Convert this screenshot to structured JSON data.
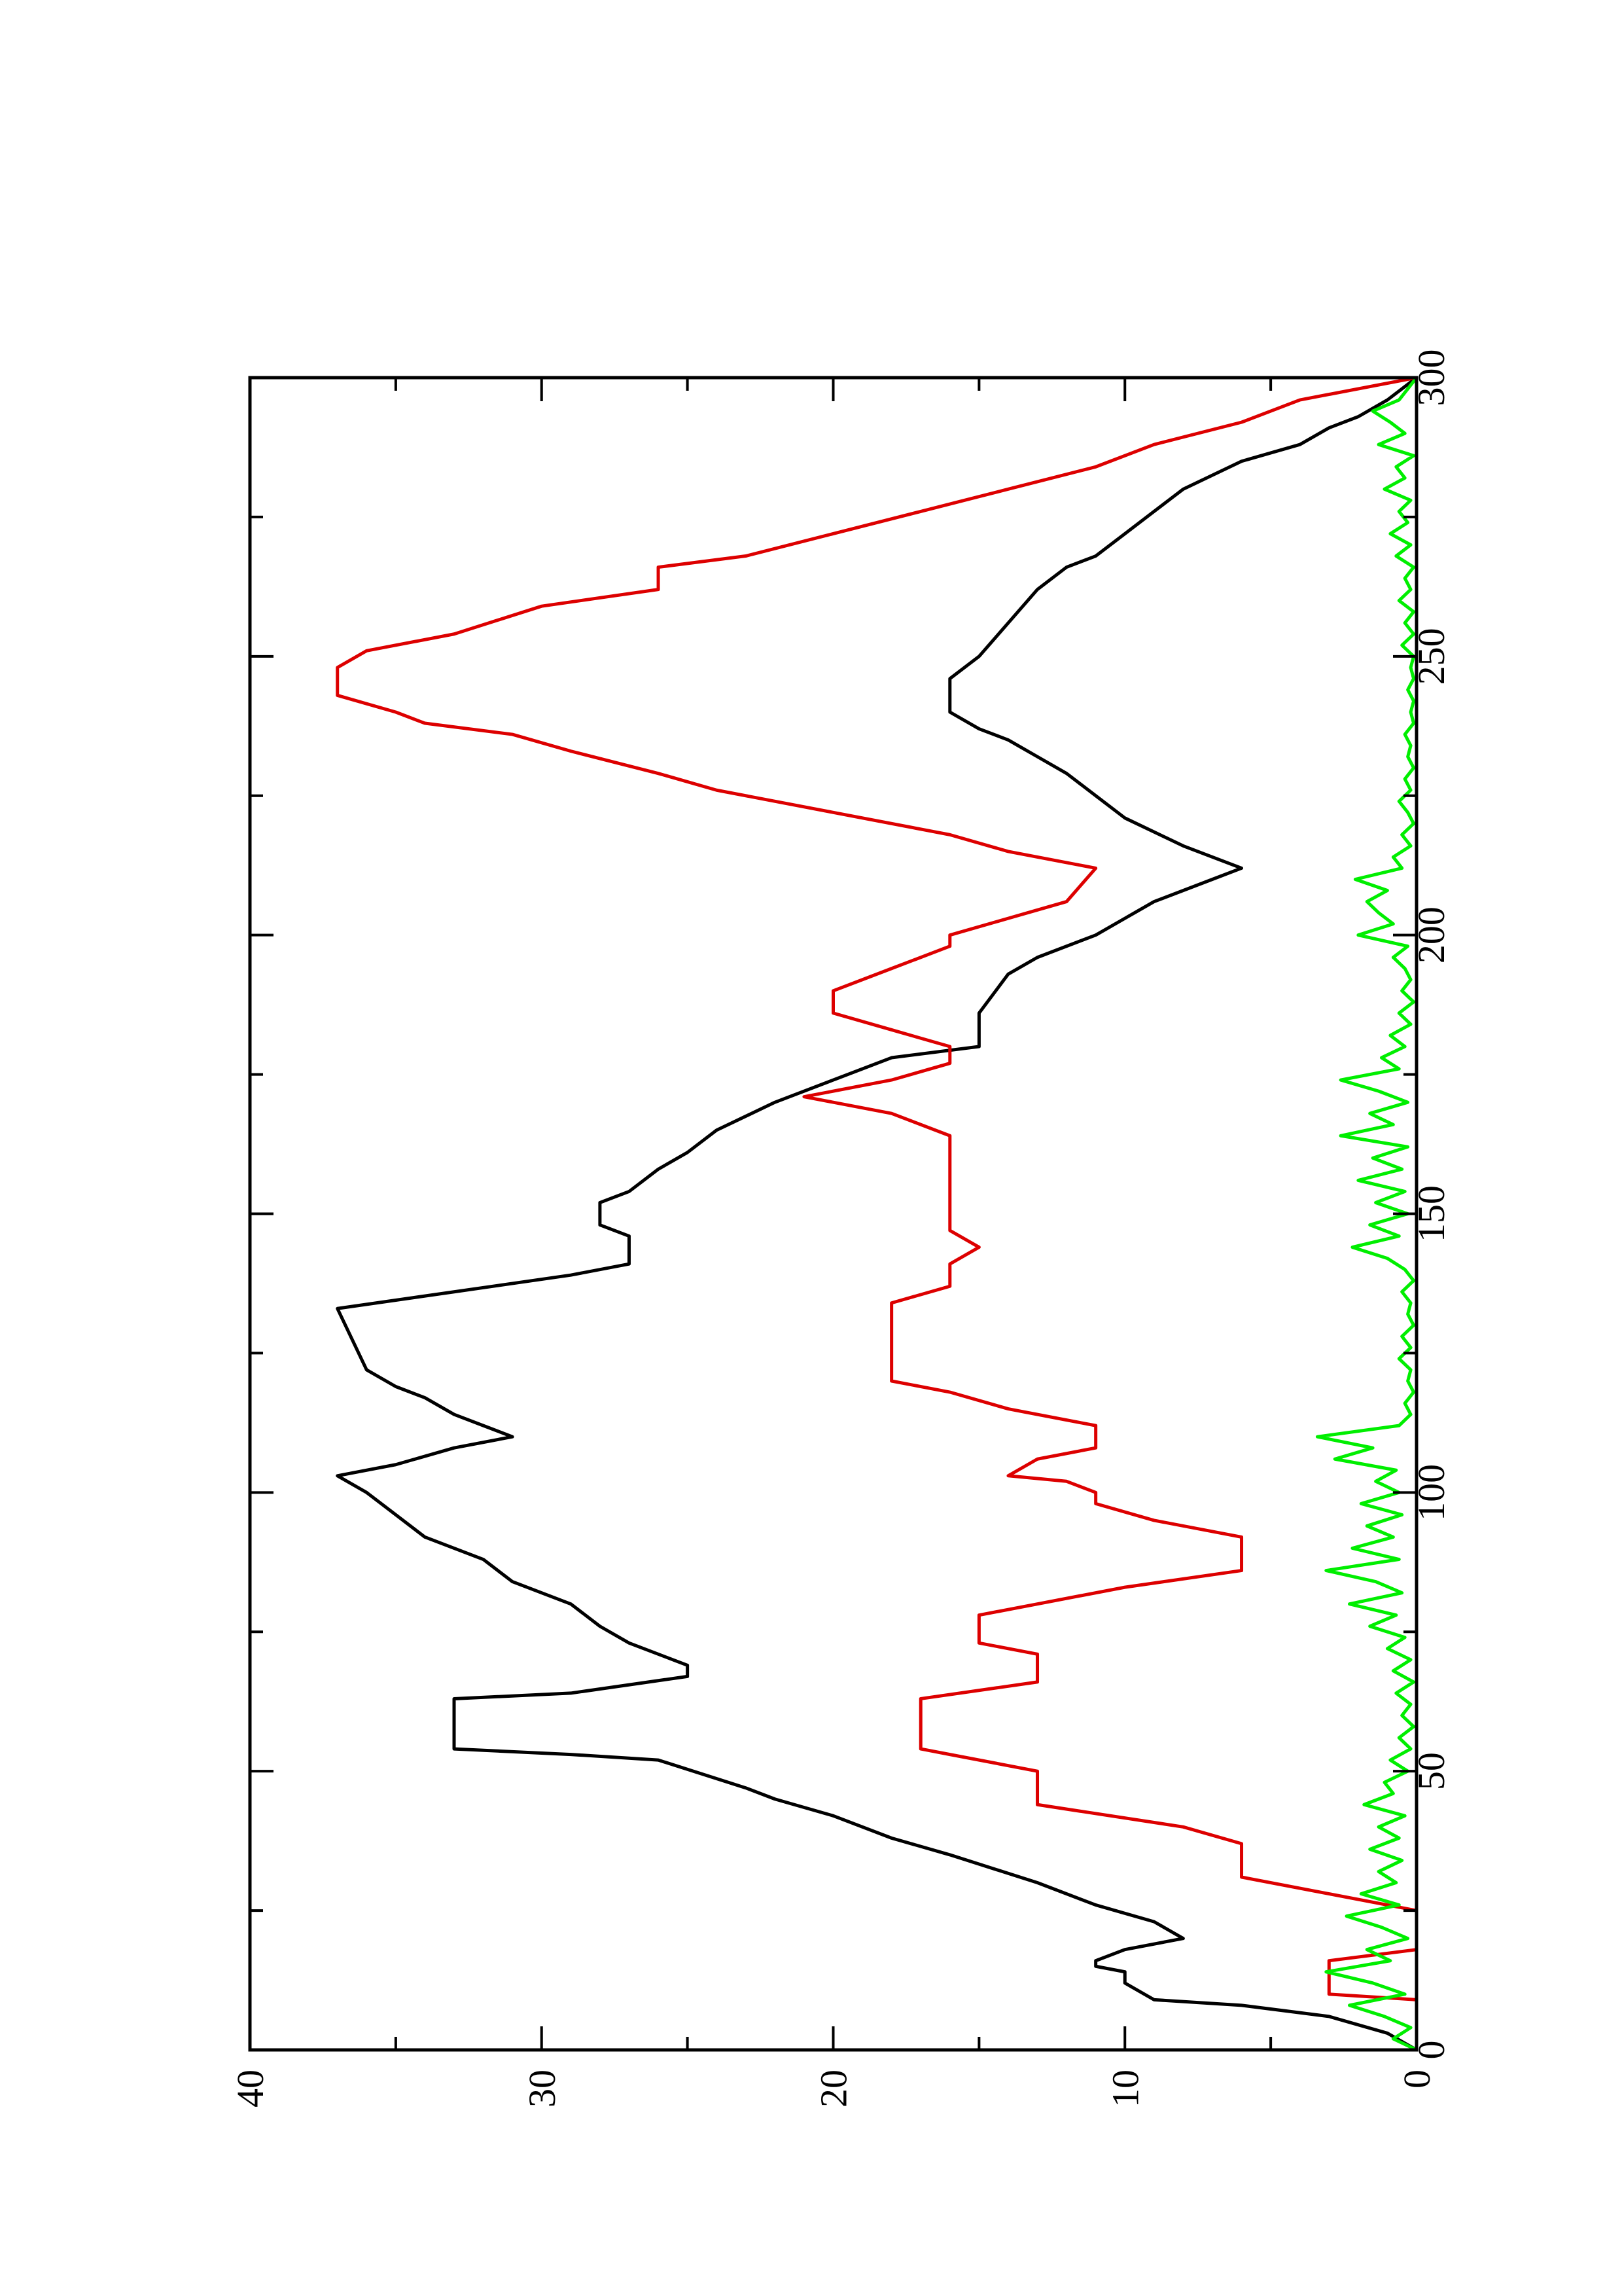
{
  "chart_data": {
    "type": "line",
    "orientation": "rotated 90 degrees counter-clockwise",
    "title": "",
    "xlabel": "",
    "ylabel": "",
    "xlim": [
      0,
      300
    ],
    "ylim": [
      0,
      40
    ],
    "x_ticks": [
      "0",
      "50",
      "100",
      "150",
      "200",
      "250",
      "300"
    ],
    "y_ticks": [
      "0",
      "10",
      "20",
      "30",
      "40"
    ],
    "grid": false,
    "legend": "none",
    "colors": {
      "series_black": "#000000",
      "series_red": "#dd0000",
      "series_green": "#00ee00",
      "frame": "#000000"
    },
    "series": [
      {
        "color": "#000000",
        "points": [
          [
            0,
            0
          ],
          [
            3,
            1
          ],
          [
            6,
            3
          ],
          [
            8,
            6
          ],
          [
            9,
            9
          ],
          [
            12,
            10
          ],
          [
            14,
            10
          ],
          [
            15,
            11
          ],
          [
            16,
            11
          ],
          [
            18,
            10
          ],
          [
            20,
            8
          ],
          [
            23,
            9
          ],
          [
            26,
            11
          ],
          [
            30,
            13
          ],
          [
            35,
            16
          ],
          [
            38,
            18
          ],
          [
            42,
            20
          ],
          [
            45,
            22
          ],
          [
            47,
            23
          ],
          [
            52,
            26
          ],
          [
            53,
            29
          ],
          [
            54,
            33
          ],
          [
            63,
            33
          ],
          [
            64,
            29
          ],
          [
            67,
            25
          ],
          [
            69,
            25
          ],
          [
            73,
            27
          ],
          [
            76,
            28
          ],
          [
            80,
            29
          ],
          [
            84,
            31
          ],
          [
            88,
            32
          ],
          [
            92,
            34
          ],
          [
            96,
            35
          ],
          [
            100,
            36
          ],
          [
            103,
            37
          ],
          [
            105,
            35
          ],
          [
            108,
            33
          ],
          [
            110,
            31
          ],
          [
            112,
            32
          ],
          [
            114,
            33
          ],
          [
            117,
            34
          ],
          [
            119,
            35
          ],
          [
            122,
            36
          ],
          [
            133,
            37
          ],
          [
            136,
            33
          ],
          [
            139,
            29
          ],
          [
            141,
            27
          ],
          [
            143,
            27
          ],
          [
            146,
            27
          ],
          [
            148,
            28
          ],
          [
            152,
            28
          ],
          [
            154,
            27
          ],
          [
            158,
            26
          ],
          [
            161,
            25
          ],
          [
            165,
            24
          ],
          [
            170,
            22
          ],
          [
            174,
            20
          ],
          [
            178,
            18
          ],
          [
            180,
            15
          ],
          [
            184,
            15
          ],
          [
            186,
            15
          ],
          [
            193,
            14
          ],
          [
            196,
            13
          ],
          [
            200,
            11
          ],
          [
            203,
            10
          ],
          [
            206,
            9
          ],
          [
            210,
            7
          ],
          [
            212,
            6
          ],
          [
            216,
            8
          ],
          [
            221,
            10
          ],
          [
            225,
            11
          ],
          [
            229,
            12
          ],
          [
            232,
            13
          ],
          [
            235,
            14
          ],
          [
            237,
            15
          ],
          [
            240,
            16
          ],
          [
            246,
            16
          ],
          [
            250,
            15
          ],
          [
            256,
            14
          ],
          [
            262,
            13
          ],
          [
            266,
            12
          ],
          [
            268,
            11
          ],
          [
            272,
            10
          ],
          [
            276,
            9
          ],
          [
            280,
            8
          ],
          [
            285,
            6
          ],
          [
            288,
            4
          ],
          [
            291,
            3
          ],
          [
            293,
            2
          ],
          [
            296,
            1
          ],
          [
            300,
            0
          ]
        ]
      },
      {
        "color": "#dd0000",
        "points": [
          [
            0,
            0
          ],
          [
            7,
            0
          ],
          [
            9,
            0
          ],
          [
            10,
            3
          ],
          [
            15,
            3
          ],
          [
            16,
            3
          ],
          [
            18,
            0
          ],
          [
            20,
            0
          ],
          [
            25,
            0
          ],
          [
            28,
            3
          ],
          [
            31,
            6
          ],
          [
            37,
            6
          ],
          [
            40,
            8
          ],
          [
            44,
            13
          ],
          [
            48,
            13
          ],
          [
            50,
            13
          ],
          [
            53,
            16
          ],
          [
            54,
            17
          ],
          [
            63,
            17
          ],
          [
            66,
            13
          ],
          [
            69,
            13
          ],
          [
            71,
            13
          ],
          [
            73,
            15
          ],
          [
            76,
            15
          ],
          [
            78,
            15
          ],
          [
            80,
            13
          ],
          [
            83,
            10
          ],
          [
            86,
            6
          ],
          [
            92,
            6
          ],
          [
            95,
            9
          ],
          [
            98,
            11
          ],
          [
            100,
            11
          ],
          [
            102,
            12
          ],
          [
            103,
            14
          ],
          [
            106,
            13
          ],
          [
            108,
            11
          ],
          [
            112,
            11
          ],
          [
            115,
            14
          ],
          [
            118,
            16
          ],
          [
            120,
            18
          ],
          [
            128,
            18
          ],
          [
            134,
            18
          ],
          [
            137,
            16
          ],
          [
            141,
            16
          ],
          [
            144,
            15
          ],
          [
            147,
            16
          ],
          [
            152,
            16
          ],
          [
            160,
            16
          ],
          [
            164,
            16
          ],
          [
            168,
            18
          ],
          [
            171,
            21
          ],
          [
            174,
            18
          ],
          [
            177,
            16
          ],
          [
            180,
            16
          ],
          [
            183,
            18
          ],
          [
            186,
            20
          ],
          [
            190,
            20
          ],
          [
            194,
            18
          ],
          [
            198,
            16
          ],
          [
            200,
            16
          ],
          [
            203,
            14
          ],
          [
            206,
            12
          ],
          [
            212,
            11
          ],
          [
            215,
            14
          ],
          [
            218,
            16
          ],
          [
            222,
            20
          ],
          [
            226,
            24
          ],
          [
            229,
            26
          ],
          [
            233,
            29
          ],
          [
            236,
            31
          ],
          [
            238,
            34
          ],
          [
            240,
            35
          ],
          [
            243,
            37
          ],
          [
            248,
            37
          ],
          [
            251,
            36
          ],
          [
            254,
            33
          ],
          [
            259,
            30
          ],
          [
            262,
            26
          ],
          [
            266,
            26
          ],
          [
            268,
            23
          ],
          [
            272,
            20
          ],
          [
            276,
            17
          ],
          [
            280,
            14
          ],
          [
            284,
            11
          ],
          [
            288,
            9
          ],
          [
            292,
            6
          ],
          [
            296,
            4
          ],
          [
            300,
            0
          ]
        ]
      },
      {
        "color": "#00ee00",
        "points": [
          [
            0,
            0
          ],
          [
            2,
            0.8
          ],
          [
            4,
            0.2
          ],
          [
            6,
            1.1
          ],
          [
            8,
            2.3
          ],
          [
            10,
            0.4
          ],
          [
            12,
            1.5
          ],
          [
            14,
            3.1
          ],
          [
            16,
            0.9
          ],
          [
            18,
            1.7
          ],
          [
            20,
            0.3
          ],
          [
            22,
            1.2
          ],
          [
            24,
            2.4
          ],
          [
            26,
            0.6
          ],
          [
            28,
            1.9
          ],
          [
            30,
            0.7
          ],
          [
            32,
            1.3
          ],
          [
            34,
            0.5
          ],
          [
            36,
            1.6
          ],
          [
            38,
            0.6
          ],
          [
            40,
            1.3
          ],
          [
            42,
            0.4
          ],
          [
            44,
            1.8
          ],
          [
            46,
            0.8
          ],
          [
            48,
            1.1
          ],
          [
            50,
            0.3
          ],
          [
            52,
            0.9
          ],
          [
            54,
            0.2
          ],
          [
            56,
            0.6
          ],
          [
            58,
            0.1
          ],
          [
            60,
            0.5
          ],
          [
            62,
            0.2
          ],
          [
            64,
            0.7
          ],
          [
            66,
            0.1
          ],
          [
            68,
            0.8
          ],
          [
            70,
            0.2
          ],
          [
            72,
            1.0
          ],
          [
            74,
            0.4
          ],
          [
            76,
            1.6
          ],
          [
            78,
            0.7
          ],
          [
            80,
            2.3
          ],
          [
            82,
            0.5
          ],
          [
            84,
            1.4
          ],
          [
            86,
            3.1
          ],
          [
            88,
            0.6
          ],
          [
            90,
            2.2
          ],
          [
            92,
            0.8
          ],
          [
            94,
            1.7
          ],
          [
            96,
            0.5
          ],
          [
            98,
            1.9
          ],
          [
            100,
            0.6
          ],
          [
            102,
            1.4
          ],
          [
            104,
            0.7
          ],
          [
            106,
            2.8
          ],
          [
            108,
            1.5
          ],
          [
            110,
            3.4
          ],
          [
            112,
            0.6
          ],
          [
            114,
            0.2
          ],
          [
            116,
            0.4
          ],
          [
            118,
            0.1
          ],
          [
            120,
            0.3
          ],
          [
            122,
            0.2
          ],
          [
            124,
            0.6
          ],
          [
            126,
            0.2
          ],
          [
            128,
            0.5
          ],
          [
            130,
            0.1
          ],
          [
            132,
            0.3
          ],
          [
            134,
            0.2
          ],
          [
            136,
            0.5
          ],
          [
            138,
            0.1
          ],
          [
            140,
            0.4
          ],
          [
            142,
            1.0
          ],
          [
            144,
            2.2
          ],
          [
            146,
            0.6
          ],
          [
            148,
            1.6
          ],
          [
            150,
            0.3
          ],
          [
            152,
            1.4
          ],
          [
            154,
            0.4
          ],
          [
            156,
            2.0
          ],
          [
            158,
            0.5
          ],
          [
            160,
            1.5
          ],
          [
            162,
            0.3
          ],
          [
            164,
            2.6
          ],
          [
            166,
            0.8
          ],
          [
            168,
            1.6
          ],
          [
            170,
            0.3
          ],
          [
            172,
            1.3
          ],
          [
            174,
            2.6
          ],
          [
            176,
            0.6
          ],
          [
            178,
            1.2
          ],
          [
            180,
            0.4
          ],
          [
            182,
            0.9
          ],
          [
            184,
            0.2
          ],
          [
            186,
            0.6
          ],
          [
            188,
            0.1
          ],
          [
            190,
            0.5
          ],
          [
            192,
            0.2
          ],
          [
            194,
            0.4
          ],
          [
            196,
            0.8
          ],
          [
            198,
            0.3
          ],
          [
            200,
            2.0
          ],
          [
            202,
            0.8
          ],
          [
            204,
            1.3
          ],
          [
            206,
            1.7
          ],
          [
            208,
            1.0
          ],
          [
            210,
            2.1
          ],
          [
            212,
            0.5
          ],
          [
            214,
            0.8
          ],
          [
            216,
            0.2
          ],
          [
            218,
            0.5
          ],
          [
            220,
            0.1
          ],
          [
            222,
            0.3
          ],
          [
            224,
            0.6
          ],
          [
            226,
            0.2
          ],
          [
            228,
            0.4
          ],
          [
            230,
            0.1
          ],
          [
            232,
            0.3
          ],
          [
            234,
            0.2
          ],
          [
            236,
            0.4
          ],
          [
            238,
            0.1
          ],
          [
            240,
            0.2
          ],
          [
            242,
            0.1
          ],
          [
            244,
            0.3
          ],
          [
            246,
            0.1
          ],
          [
            248,
            0.2
          ],
          [
            250,
            0.1
          ],
          [
            252,
            0.5
          ],
          [
            254,
            0.1
          ],
          [
            256,
            0.4
          ],
          [
            258,
            0.1
          ],
          [
            260,
            0.6
          ],
          [
            262,
            0.2
          ],
          [
            264,
            0.4
          ],
          [
            266,
            0.1
          ],
          [
            268,
            0.7
          ],
          [
            270,
            0.2
          ],
          [
            272,
            0.9
          ],
          [
            274,
            0.3
          ],
          [
            276,
            0.6
          ],
          [
            278,
            0.2
          ],
          [
            280,
            1.1
          ],
          [
            282,
            0.4
          ],
          [
            284,
            0.7
          ],
          [
            286,
            0.1
          ],
          [
            288,
            1.3
          ],
          [
            290,
            0.4
          ],
          [
            292,
            0.9
          ],
          [
            294,
            1.5
          ],
          [
            296,
            0.6
          ],
          [
            298,
            0.3
          ],
          [
            300,
            0
          ]
        ]
      }
    ]
  }
}
